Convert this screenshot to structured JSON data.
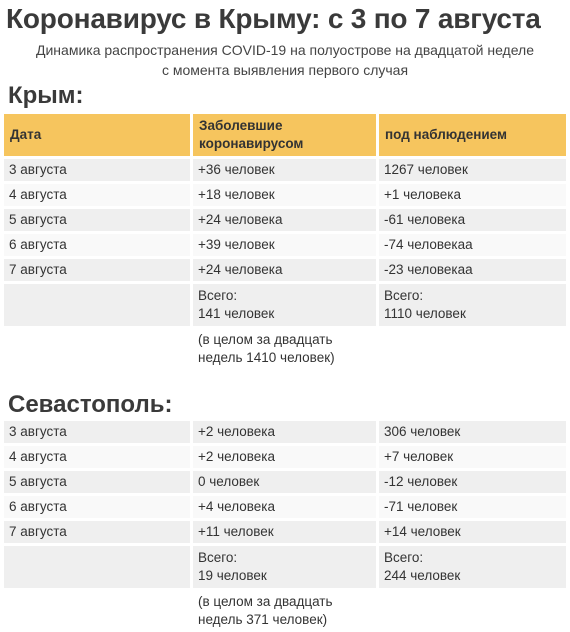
{
  "title": "Коронавирус в Крыму: с 3 по 7 августа",
  "subtitle_line1": "Динамика распространения COVID-19 на полуострове на двадцатой неделе",
  "subtitle_line2": "с момента выявления первого случая",
  "crimea": {
    "heading": "Крым:",
    "header": {
      "date": "Дата",
      "sick_line1": "Заболевшие",
      "sick_line2": "коронавирусом",
      "observed": "под наблюдением"
    },
    "rows": [
      {
        "date": "3 августа",
        "sick": "+36 человек",
        "observed": "1267 человек"
      },
      {
        "date": "4 августа",
        "sick": "+18 человек",
        "observed": "+1 человека"
      },
      {
        "date": "5 августа",
        "sick": "+24 человека",
        "observed": "-61 человека"
      },
      {
        "date": "6 августа",
        "sick": "+39 человек",
        "observed": "-74 человекаа"
      },
      {
        "date": "7 августа",
        "sick": "+24 человека",
        "observed": "-23 человекаа"
      }
    ],
    "total": {
      "label": "Всего:",
      "sick": "141 человек",
      "observed": "1110 человек"
    },
    "note_line1": "(в целом за двадцать",
    "note_line2": "недель 1410 человек)"
  },
  "sevastopol": {
    "heading": "Севастополь:",
    "rows": [
      {
        "date": "3 августа",
        "sick": "+2 человека",
        "observed": "306 человек"
      },
      {
        "date": "4 августа",
        "sick": "+2 человека",
        "observed": "+7 человек"
      },
      {
        "date": "5 августа",
        "sick": "0 человек",
        "observed": "-12 человек"
      },
      {
        "date": "6 августа",
        "sick": "+4 человека",
        "observed": "-71 человек"
      },
      {
        "date": "7 августа",
        "sick": "+11 человек",
        "observed": "+14 человек"
      }
    ],
    "total": {
      "label": "Всего:",
      "sick": "19 человек",
      "observed": "244 человек"
    },
    "note_line1": "(в целом за двадцать",
    "note_line2": "недель 371 человек)"
  },
  "colors": {
    "header_bg": "#f6c55e",
    "row_bg": "#efefef",
    "text": "#333333"
  }
}
